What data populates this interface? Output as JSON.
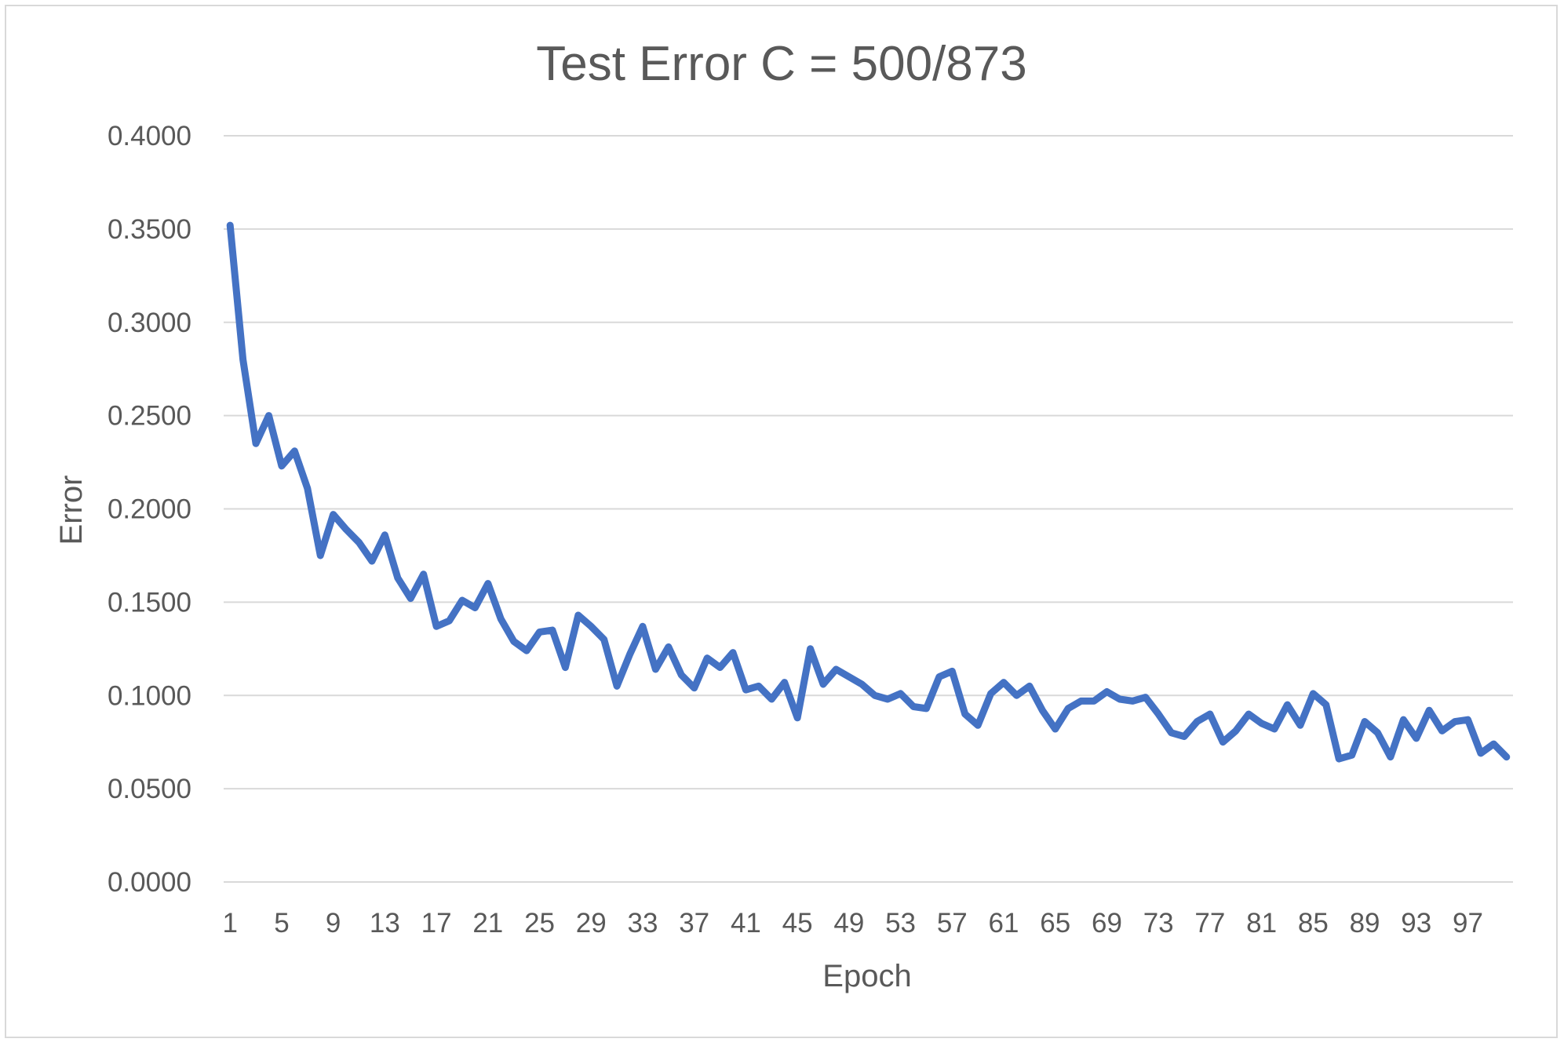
{
  "chart_data": {
    "type": "line",
    "title": "Test Error C = 500/873",
    "xlabel": "Epoch",
    "ylabel": "Error",
    "ylim": [
      0,
      0.4
    ],
    "y_ticks": [
      "0.0000",
      "0.0500",
      "0.1000",
      "0.1500",
      "0.2000",
      "0.2500",
      "0.3000",
      "0.3500",
      "0.4000"
    ],
    "x_tick_labels": [
      "1",
      "5",
      "9",
      "13",
      "17",
      "21",
      "25",
      "29",
      "33",
      "37",
      "41",
      "45",
      "49",
      "53",
      "57",
      "61",
      "65",
      "69",
      "73",
      "77",
      "81",
      "85",
      "89",
      "93",
      "97"
    ],
    "grid": true,
    "legend": "none",
    "color": "#4472c4",
    "x": [
      1,
      2,
      3,
      4,
      5,
      6,
      7,
      8,
      9,
      10,
      11,
      12,
      13,
      14,
      15,
      16,
      17,
      18,
      19,
      20,
      21,
      22,
      23,
      24,
      25,
      26,
      27,
      28,
      29,
      30,
      31,
      32,
      33,
      34,
      35,
      36,
      37,
      38,
      39,
      40,
      41,
      42,
      43,
      44,
      45,
      46,
      47,
      48,
      49,
      50,
      51,
      52,
      53,
      54,
      55,
      56,
      57,
      58,
      59,
      60,
      61,
      62,
      63,
      64,
      65,
      66,
      67,
      68,
      69,
      70,
      71,
      72,
      73,
      74,
      75,
      76,
      77,
      78,
      79,
      80,
      81,
      82,
      83,
      84,
      85,
      86,
      87,
      88,
      89,
      90,
      91,
      92,
      93,
      94,
      95,
      96,
      97,
      98,
      99,
      100
    ],
    "values": [
      0.352,
      0.28,
      0.235,
      0.25,
      0.223,
      0.231,
      0.211,
      0.175,
      0.197,
      0.189,
      0.182,
      0.172,
      0.186,
      0.163,
      0.152,
      0.165,
      0.137,
      0.14,
      0.151,
      0.147,
      0.16,
      0.141,
      0.129,
      0.124,
      0.134,
      0.135,
      0.115,
      0.143,
      0.137,
      0.13,
      0.105,
      0.122,
      0.137,
      0.114,
      0.126,
      0.111,
      0.104,
      0.12,
      0.115,
      0.123,
      0.103,
      0.105,
      0.098,
      0.107,
      0.088,
      0.125,
      0.106,
      0.114,
      0.11,
      0.106,
      0.1,
      0.098,
      0.101,
      0.094,
      0.093,
      0.11,
      0.113,
      0.09,
      0.084,
      0.101,
      0.107,
      0.1,
      0.105,
      0.092,
      0.082,
      0.093,
      0.097,
      0.097,
      0.102,
      0.098,
      0.097,
      0.099,
      0.09,
      0.08,
      0.078,
      0.086,
      0.09,
      0.075,
      0.081,
      0.09,
      0.085,
      0.082,
      0.095,
      0.084,
      0.101,
      0.095,
      0.066,
      0.068,
      0.086,
      0.08,
      0.067,
      0.087,
      0.077,
      0.092,
      0.081,
      0.086,
      0.087,
      0.069,
      0.074,
      0.067
    ]
  }
}
